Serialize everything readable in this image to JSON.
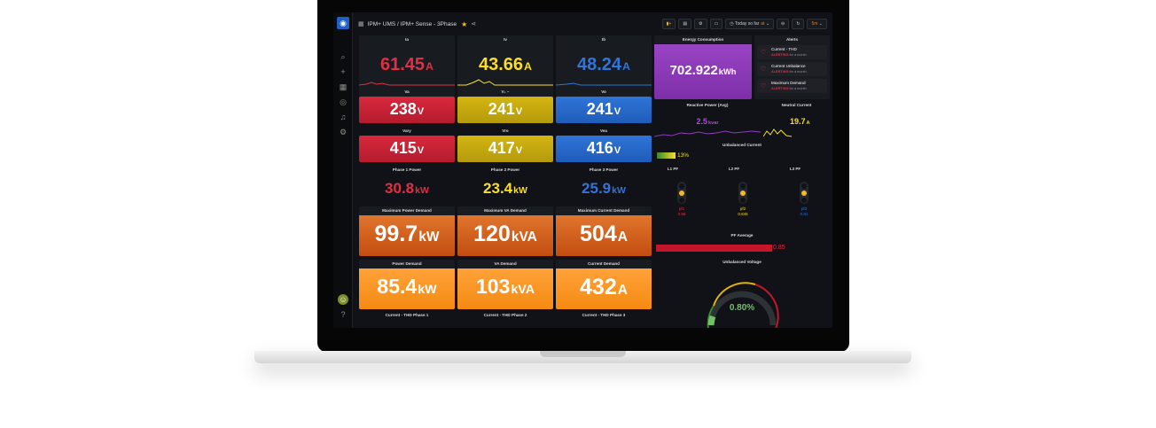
{
  "app": {
    "breadcrumb": "IPM+ UMS / IPM+ Sense - 3Phase",
    "time_range_label": "Today so far",
    "time_range_suffix": "at",
    "refresh_interval": "5m"
  },
  "colors": {
    "red": "#e02f44",
    "yellow": "#fade2a",
    "blue": "#3274d9",
    "purple": "#8f3bb8",
    "orange": "#e0752d",
    "light_orange": "#ff9830",
    "green": "#73bf69",
    "dark_bg": "#111217"
  },
  "currents": [
    {
      "title": "Ia",
      "value": "61.45",
      "unit": "A"
    },
    {
      "title": "Iv",
      "value": "43.66",
      "unit": "A"
    },
    {
      "title": "Ib",
      "value": "48.24",
      "unit": "A"
    }
  ],
  "phase_voltages": [
    {
      "title": "Va",
      "value": "238",
      "unit": "V"
    },
    {
      "title": "V₁ ~",
      "value": "241",
      "unit": "V"
    },
    {
      "title": "Vo",
      "value": "241",
      "unit": "V"
    }
  ],
  "line_voltages": [
    {
      "title": "Vary",
      "value": "415",
      "unit": "V"
    },
    {
      "title": "Vro",
      "value": "417",
      "unit": "V"
    },
    {
      "title": "Vea",
      "value": "416",
      "unit": "V"
    }
  ],
  "phase_power": [
    {
      "title": "Phase 1 Power",
      "value": "30.8",
      "unit": "kW"
    },
    {
      "title": "Phase 2 Power",
      "value": "23.4",
      "unit": "kW"
    },
    {
      "title": "Phase 3 Power",
      "value": "25.9",
      "unit": "kW"
    }
  ],
  "max_demand": [
    {
      "title": "Maximum Power Demand",
      "value": "99.7",
      "unit": "kW"
    },
    {
      "title": "Maximum VA Demand",
      "value": "120",
      "unit": "kVA"
    },
    {
      "title": "Maximum Current Demand",
      "value": "504",
      "unit": "A"
    }
  ],
  "demand": [
    {
      "title": "Power Demand",
      "value": "85.4",
      "unit": "kW"
    },
    {
      "title": "VA Demand",
      "value": "103",
      "unit": "kVA"
    },
    {
      "title": "Current Demand",
      "value": "432",
      "unit": "A"
    }
  ],
  "thd_titles": [
    "Current - THD Phase 1",
    "Current - THD Phase 2",
    "Current - THD Phase 3"
  ],
  "energy": {
    "title": "Energy Consumption",
    "value": "702.922",
    "unit": "kWh"
  },
  "alerts": {
    "title": "Alerts",
    "items": [
      {
        "name": "Current - THD",
        "state": "ALERTING",
        "since": "for a month"
      },
      {
        "name": "Current Unbalance",
        "state": "ALERTING",
        "since": "for a month"
      },
      {
        "name": "Maximum Demand",
        "state": "ALERTING",
        "since": "for a month"
      }
    ]
  },
  "reactive": {
    "title": "Reactive Power (Avg)",
    "value": "2.5",
    "unit": "kvar"
  },
  "neutral": {
    "title": "Neutral Current",
    "value": "19.7",
    "unit": "A"
  },
  "unbalanced_current": {
    "title": "Unbalanced Current",
    "value": "13%",
    "fraction": 0.13
  },
  "pf": [
    {
      "title": "L1 PF",
      "label": "pf1",
      "value": "0.88"
    },
    {
      "title": "L2 PF",
      "label": "pf2",
      "value": "0.845"
    },
    {
      "title": "L3 PF",
      "label": "pf3",
      "value": "0.81"
    }
  ],
  "pf_average": {
    "title": "PF Average",
    "value": "0.85",
    "fraction": 0.85
  },
  "unbalanced_voltage": {
    "title": "Unbalanced Voltage",
    "value": "0.80%"
  }
}
